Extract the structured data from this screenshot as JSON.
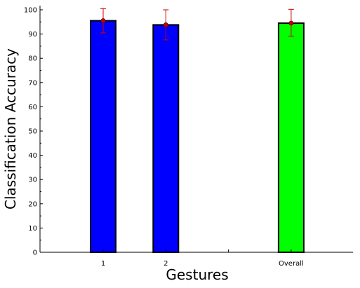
{
  "chart_data": {
    "type": "bar",
    "xlabel": "Gestures",
    "ylabel": "Classification Accuracy",
    "ylim": [
      0,
      100
    ],
    "y_ticks": [
      0,
      10,
      20,
      30,
      40,
      50,
      60,
      70,
      80,
      90,
      100
    ],
    "x_positions": [
      1,
      2,
      3,
      4
    ],
    "x_tick_labels": [
      "1",
      "2",
      "",
      "Overall"
    ],
    "categories": [
      "1",
      "2",
      "Overall"
    ],
    "values": [
      95.5,
      93.8,
      94.5
    ],
    "error_low": [
      90.5,
      87.6,
      89.1
    ],
    "error_high": [
      100.5,
      100.0,
      100.2
    ],
    "bar_colors": [
      "#0000ff",
      "#0000ff",
      "#00ff00"
    ],
    "error_color": "#cc0000",
    "grid": false
  }
}
